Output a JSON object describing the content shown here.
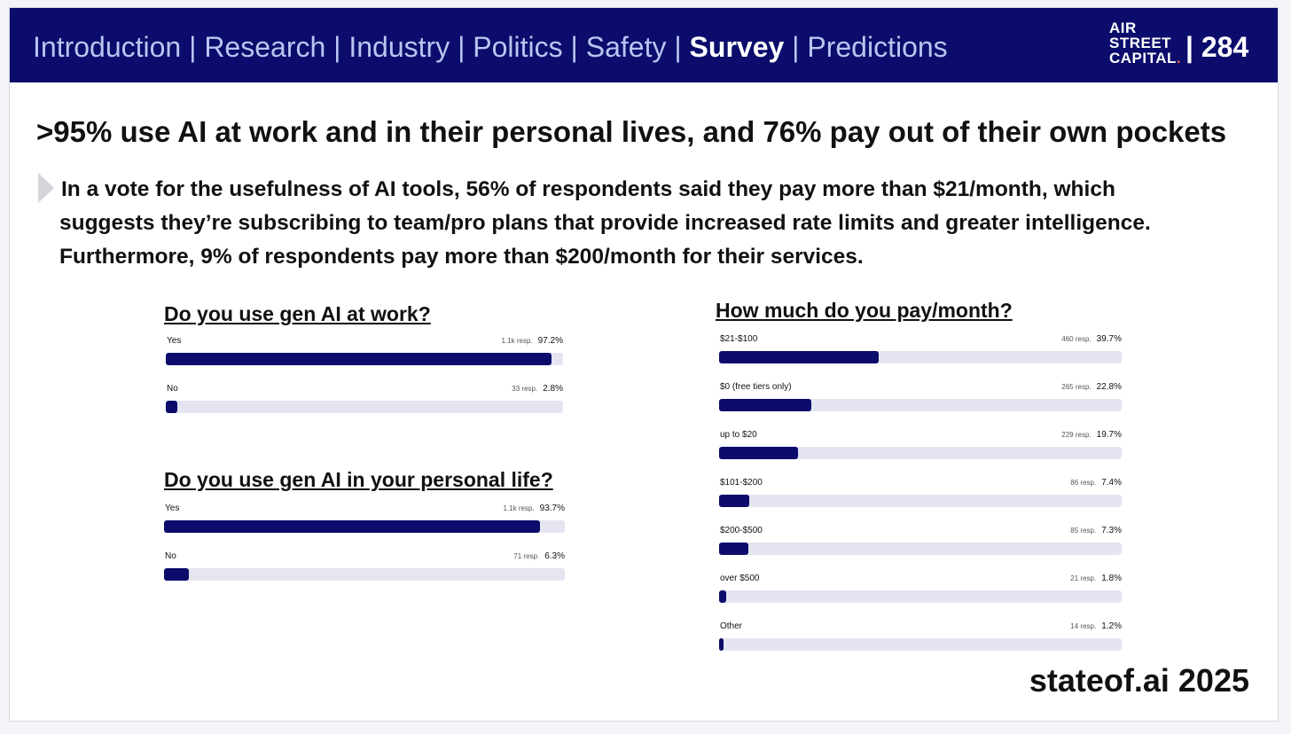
{
  "header": {
    "nav": [
      "Introduction",
      "Research",
      "Industry",
      "Politics",
      "Safety",
      "Survey",
      "Predictions"
    ],
    "active": "Survey",
    "separator": "|",
    "logo": [
      "AIR",
      "STREET",
      "CAPITAL"
    ],
    "logo_dot": ".",
    "page_number": "| 284"
  },
  "title": ">95% use AI at work and in their personal lives, and 76% pay out of their own pockets",
  "body": "In a vote for the usefulness of AI tools, 56% of respondents said they pay more than $21/month, which suggests they’re subscribing to team/pro plans that provide increased rate limits and greater intelligence. Furthermore, 9% of respondents pay more than $200/month for their services.",
  "footer": "stateof.ai 2025",
  "colors": {
    "header_bg": "#0b0c6b",
    "nav_text": "#b9c5f1",
    "bar_fill": "#0b0c6b",
    "bar_track": "#e4e5f0"
  },
  "chart_data": [
    {
      "type": "bar",
      "orientation": "horizontal",
      "title": "Do you use gen AI at work?",
      "categories": [
        "Yes",
        "No"
      ],
      "responses": [
        "1.1k resp.",
        "33 resp."
      ],
      "values": [
        97.2,
        2.8
      ],
      "value_labels": [
        "97.2%",
        "2.8%"
      ],
      "xlim": [
        0,
        100
      ]
    },
    {
      "type": "bar",
      "orientation": "horizontal",
      "title": "Do you use gen AI in your personal life?",
      "categories": [
        "Yes",
        "No"
      ],
      "responses": [
        "1.1k resp.",
        "71 resp."
      ],
      "values": [
        93.7,
        6.3
      ],
      "value_labels": [
        "93.7%",
        "6.3%"
      ],
      "xlim": [
        0,
        100
      ]
    },
    {
      "type": "bar",
      "orientation": "horizontal",
      "title": "How much do you pay/month?",
      "categories": [
        "$21-$100",
        "$0 (free tiers only)",
        "up to $20",
        "$101-$200",
        "$200-$500",
        "over $500",
        "Other"
      ],
      "responses": [
        "460 resp.",
        "265 resp.",
        "229 resp.",
        "86 resp.",
        "85 resp.",
        "21 resp.",
        "14 resp."
      ],
      "values": [
        39.7,
        22.8,
        19.7,
        7.4,
        7.3,
        1.8,
        1.2
      ],
      "value_labels": [
        "39.7%",
        "22.8%",
        "19.7%",
        "7.4%",
        "7.3%",
        "1.8%",
        "1.2%"
      ],
      "xlim": [
        0,
        100
      ]
    }
  ]
}
